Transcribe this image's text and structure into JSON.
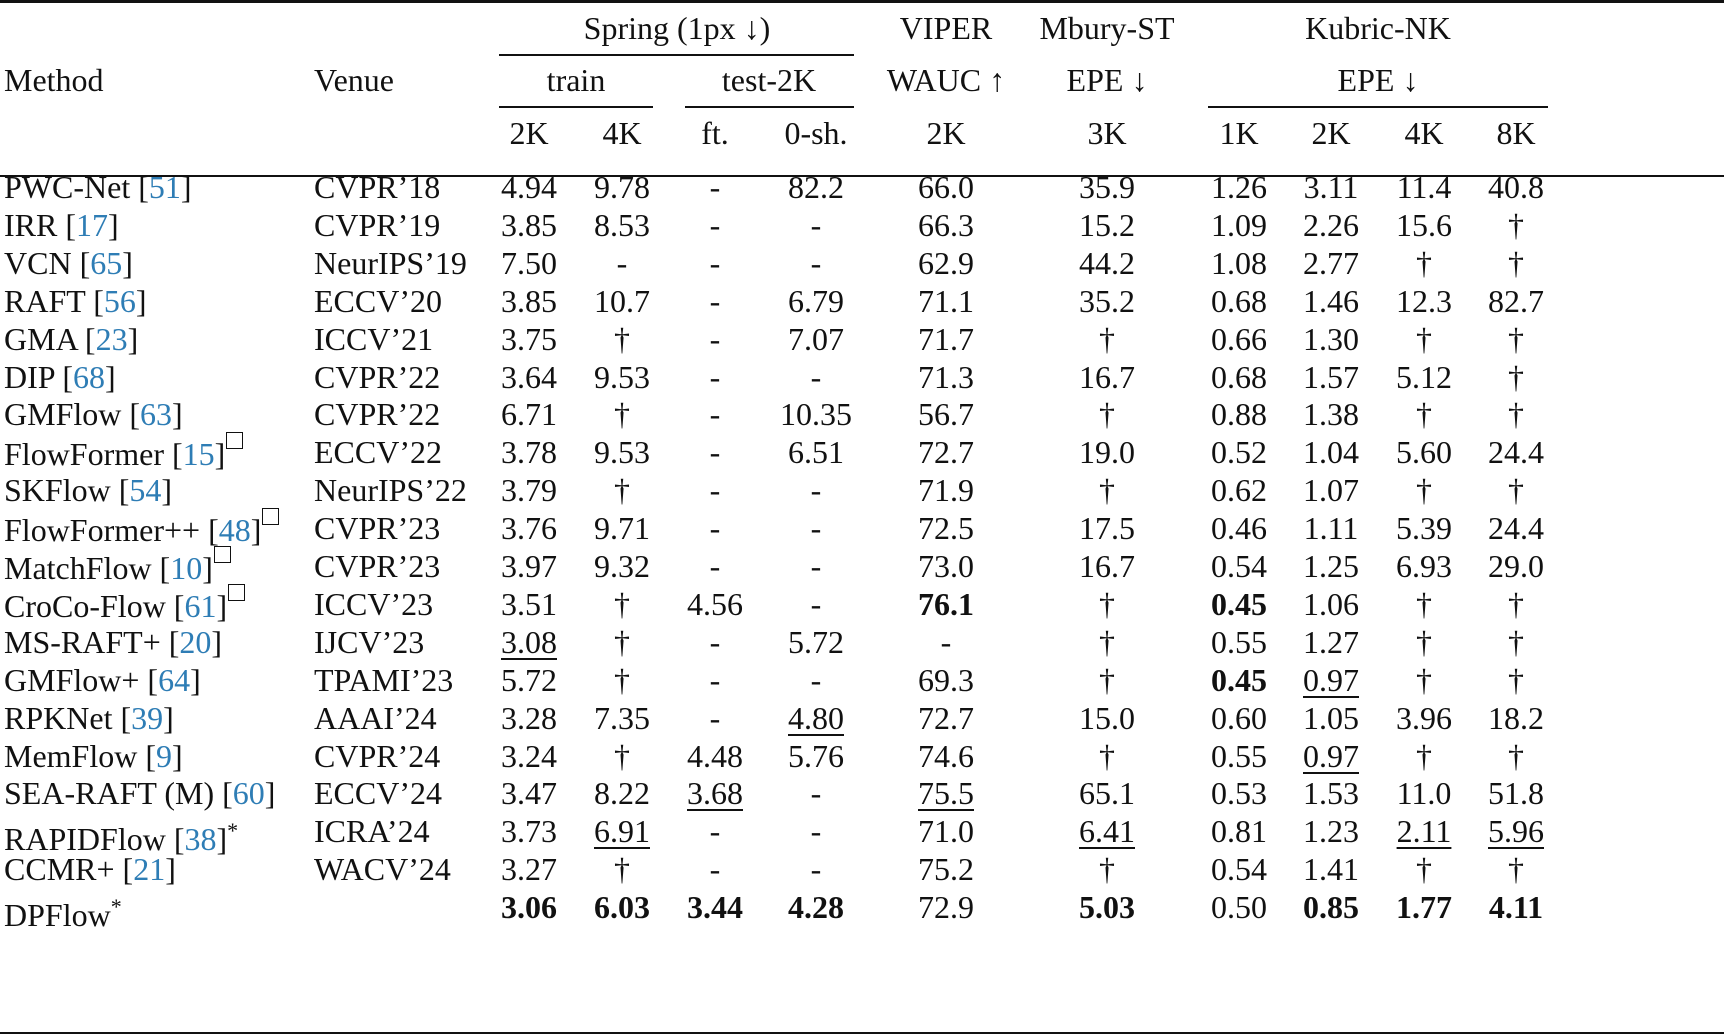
{
  "header": {
    "method": "Method",
    "venue": "Venue",
    "spring": "Spring (1px ↓)",
    "train": "train",
    "test2k": "test-2K",
    "viper": "VIPER",
    "wauc": "WAUC ↑",
    "mbury": "Mbury-ST",
    "epe_mbury": "EPE ↓",
    "kubric": "Kubric-NK",
    "epe_kubric": "EPE ↓",
    "sub": [
      "2K",
      "4K",
      "ft.",
      "0-sh.",
      "2K",
      "3K",
      "1K",
      "2K",
      "4K",
      "8K"
    ]
  },
  "rows": [
    {
      "method": "PWC-Net",
      "ref": "51",
      "mark": "",
      "venue": "CVPR’18",
      "values": [
        "4.94",
        "9.78",
        "-",
        "82.2",
        "66.0",
        "35.9",
        "1.26",
        "3.11",
        "11.4",
        "40.8"
      ],
      "bold": [],
      "underline": []
    },
    {
      "method": "IRR",
      "ref": "17",
      "mark": "",
      "venue": "CVPR’19",
      "values": [
        "3.85",
        "8.53",
        "-",
        "-",
        "66.3",
        "15.2",
        "1.09",
        "2.26",
        "15.6",
        "†"
      ],
      "bold": [],
      "underline": []
    },
    {
      "method": "VCN",
      "ref": "65",
      "mark": "",
      "venue": "NeurIPS’19",
      "values": [
        "7.50",
        "-",
        "-",
        "-",
        "62.9",
        "44.2",
        "1.08",
        "2.77",
        "†",
        "†"
      ],
      "bold": [],
      "underline": []
    },
    {
      "method": "RAFT",
      "ref": "56",
      "mark": "",
      "venue": "ECCV’20",
      "values": [
        "3.85",
        "10.7",
        "-",
        "6.79",
        "71.1",
        "35.2",
        "0.68",
        "1.46",
        "12.3",
        "82.7"
      ],
      "bold": [],
      "underline": []
    },
    {
      "method": "GMA",
      "ref": "23",
      "mark": "",
      "venue": "ICCV’21",
      "values": [
        "3.75",
        "†",
        "-",
        "7.07",
        "71.7",
        "†",
        "0.66",
        "1.30",
        "†",
        "†"
      ],
      "bold": [],
      "underline": []
    },
    {
      "method": "DIP",
      "ref": "68",
      "mark": "",
      "venue": "CVPR’22",
      "values": [
        "3.64",
        "9.53",
        "-",
        "-",
        "71.3",
        "16.7",
        "0.68",
        "1.57",
        "5.12",
        "†"
      ],
      "bold": [],
      "underline": []
    },
    {
      "method": "GMFlow",
      "ref": "63",
      "mark": "",
      "venue": "CVPR’22",
      "values": [
        "6.71",
        "†",
        "-",
        "10.35",
        "56.7",
        "†",
        "0.88",
        "1.38",
        "†",
        "†"
      ],
      "bold": [],
      "underline": []
    },
    {
      "method": "FlowFormer",
      "ref": "15",
      "mark": "box",
      "venue": "ECCV’22",
      "values": [
        "3.78",
        "9.53",
        "-",
        "6.51",
        "72.7",
        "19.0",
        "0.52",
        "1.04",
        "5.60",
        "24.4"
      ],
      "bold": [],
      "underline": []
    },
    {
      "method": "SKFlow",
      "ref": "54",
      "mark": "",
      "venue": "NeurIPS’22",
      "values": [
        "3.79",
        "†",
        "-",
        "-",
        "71.9",
        "†",
        "0.62",
        "1.07",
        "†",
        "†"
      ],
      "bold": [],
      "underline": []
    },
    {
      "method": "FlowFormer++",
      "ref": "48",
      "mark": "box",
      "venue": "CVPR’23",
      "values": [
        "3.76",
        "9.71",
        "-",
        "-",
        "72.5",
        "17.5",
        "0.46",
        "1.11",
        "5.39",
        "24.4"
      ],
      "bold": [],
      "underline": []
    },
    {
      "method": "MatchFlow",
      "ref": "10",
      "mark": "box",
      "venue": "CVPR’23",
      "values": [
        "3.97",
        "9.32",
        "-",
        "-",
        "73.0",
        "16.7",
        "0.54",
        "1.25",
        "6.93",
        "29.0"
      ],
      "bold": [],
      "underline": []
    },
    {
      "method": "CroCo-Flow",
      "ref": "61",
      "mark": "box",
      "venue": "ICCV’23",
      "values": [
        "3.51",
        "†",
        "4.56",
        "-",
        "76.1",
        "†",
        "0.45",
        "1.06",
        "†",
        "†"
      ],
      "bold": [
        4,
        6
      ],
      "underline": []
    },
    {
      "method": "MS-RAFT+",
      "ref": "20",
      "mark": "",
      "venue": "IJCV’23",
      "values": [
        "3.08",
        "†",
        "-",
        "5.72",
        "-",
        "†",
        "0.55",
        "1.27",
        "†",
        "†"
      ],
      "bold": [],
      "underline": [
        0
      ]
    },
    {
      "method": "GMFlow+",
      "ref": "64",
      "mark": "",
      "venue": "TPAMI’23",
      "values": [
        "5.72",
        "†",
        "-",
        "-",
        "69.3",
        "†",
        "0.45",
        "0.97",
        "†",
        "†"
      ],
      "bold": [
        6
      ],
      "underline": [
        7
      ]
    },
    {
      "method": "RPKNet",
      "ref": "39",
      "mark": "",
      "venue": "AAAI’24",
      "values": [
        "3.28",
        "7.35",
        "-",
        "4.80",
        "72.7",
        "15.0",
        "0.60",
        "1.05",
        "3.96",
        "18.2"
      ],
      "bold": [],
      "underline": [
        3
      ]
    },
    {
      "method": "MemFlow",
      "ref": "9",
      "mark": "",
      "venue": "CVPR’24",
      "values": [
        "3.24",
        "†",
        "4.48",
        "5.76",
        "74.6",
        "†",
        "0.55",
        "0.97",
        "†",
        "†"
      ],
      "bold": [],
      "underline": [
        7
      ]
    },
    {
      "method": "SEA-RAFT (M)",
      "ref": "60",
      "mark": "",
      "venue": "ECCV’24",
      "values": [
        "3.47",
        "8.22",
        "3.68",
        "-",
        "75.5",
        "65.1",
        "0.53",
        "1.53",
        "11.0",
        "51.8"
      ],
      "bold": [],
      "underline": [
        2,
        4
      ]
    },
    {
      "method": "RAPIDFlow",
      "ref": "38",
      "mark": "*",
      "venue": "ICRA’24",
      "values": [
        "3.73",
        "6.91",
        "-",
        "-",
        "71.0",
        "6.41",
        "0.81",
        "1.23",
        "2.11",
        "5.96"
      ],
      "bold": [],
      "underline": [
        1,
        5,
        8,
        9
      ]
    },
    {
      "method": "CCMR+",
      "ref": "21",
      "mark": "",
      "venue": "WACV’24",
      "values": [
        "3.27",
        "†",
        "-",
        "-",
        "75.2",
        "†",
        "0.54",
        "1.41",
        "†",
        "†"
      ],
      "bold": [],
      "underline": []
    },
    {
      "method": "DPFlow",
      "ref": "",
      "mark": "*",
      "venue": "",
      "values": [
        "3.06",
        "6.03",
        "3.44",
        "4.28",
        "72.9",
        "5.03",
        "0.50",
        "0.85",
        "1.77",
        "4.11"
      ],
      "bold": [
        0,
        1,
        2,
        3,
        5,
        7,
        8,
        9
      ],
      "underline": []
    }
  ]
}
